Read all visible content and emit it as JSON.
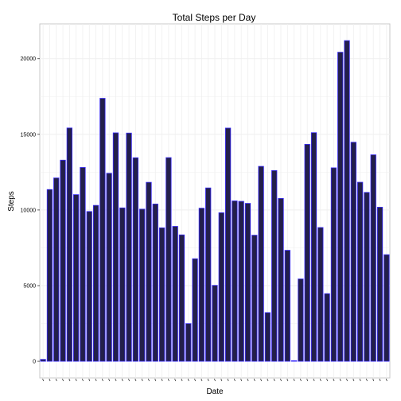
{
  "chart_data": {
    "type": "bar",
    "title": "Total Steps per Day",
    "xlabel": "Date",
    "ylabel": "Steps",
    "ylim": [
      -1100,
      22300
    ],
    "yticks": [
      0,
      5000,
      10000,
      15000,
      20000
    ],
    "ytick_labels": [
      "0",
      "5000",
      "10000",
      "15000",
      "20000"
    ],
    "grid": true,
    "bar_fill": "#231f4a",
    "bar_outline": "#3a2bff",
    "panel_background": "#ffffff",
    "panel_border": "#c8c8c8",
    "grid_color": "#efefef",
    "values": [
      126,
      11352,
      12116,
      13294,
      15420,
      11015,
      12811,
      9900,
      10304,
      17382,
      12426,
      15098,
      10139,
      15084,
      13452,
      10056,
      11829,
      10395,
      8821,
      13460,
      8918,
      8355,
      2492,
      6778,
      10119,
      11458,
      5018,
      9819,
      15414,
      10600,
      10571,
      10439,
      8334,
      12883,
      3219,
      12608,
      10765,
      7336,
      41,
      5441,
      14339,
      15110,
      8841,
      4472,
      12787,
      20427,
      21194,
      14478,
      11834,
      11162,
      13646,
      10183,
      7047
    ]
  }
}
